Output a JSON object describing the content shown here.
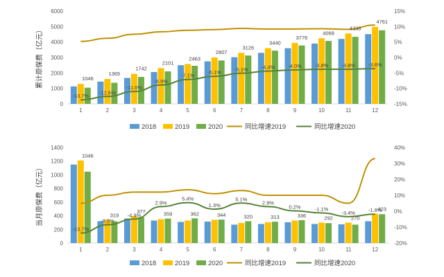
{
  "chart_data": [
    {
      "type": "bar",
      "ylabel": "累计原保费（亿元）",
      "categories": [
        "1",
        "2",
        "3",
        "4",
        "5",
        "6",
        "7",
        "8",
        "9",
        "10",
        "11",
        "12"
      ],
      "ylim": [
        0,
        6000
      ],
      "yticks": [
        "0",
        "1000",
        "2000",
        "3000",
        "4000",
        "5000",
        "6000"
      ],
      "y2lim": [
        -15,
        15
      ],
      "y2ticks": [
        "-15%",
        "-10%",
        "-5%",
        "0%",
        "5%",
        "10%",
        "15%"
      ],
      "series": [
        {
          "name": "2018",
          "kind": "bar",
          "color": "#5b9bd5",
          "values": [
            1130,
            1440,
            1680,
            2060,
            2500,
            2750,
            3020,
            3300,
            3600,
            3900,
            4200,
            4510
          ]
        },
        {
          "name": "2019",
          "kind": "bar",
          "color": "#ffc000",
          "values": [
            1290,
            1610,
            1940,
            2310,
            2580,
            3000,
            3300,
            3600,
            3940,
            4240,
            4550,
            4980
          ]
        },
        {
          "name": "2020",
          "kind": "bar",
          "color": "#70ad47",
          "values": [
            1046,
            1365,
            1742,
            2101,
            2463,
            2807,
            3126,
            3440,
            3776,
            4068,
            4338,
            4761
          ]
        },
        {
          "name": "同比增速2019",
          "kind": "line",
          "axis": "y2",
          "color": "#bf9000",
          "values": [
            5.2,
            6.2,
            7.5,
            8.3,
            8.8,
            9.0,
            9.4,
            9.2,
            9.2,
            9.3,
            9.1,
            10.5
          ]
        },
        {
          "name": "同比增速2020",
          "kind": "line",
          "axis": "y2",
          "color": "#548235",
          "values": [
            -13.7,
            -12.6,
            -11.0,
            -8.9,
            -7.1,
            -6.1,
            -5.1,
            -4.4,
            -4.0,
            -3.8,
            -3.8,
            -3.6
          ]
        }
      ],
      "labels_bar": [
        "1046",
        "1365",
        "1742",
        "2101",
        "2463",
        "2807",
        "3126",
        "3440",
        "3776",
        "4068",
        "4338",
        "4761"
      ],
      "labels_line": [
        "-13.7%",
        "-12.6%",
        "-11.0%",
        "-8.9%",
        "-7.1%",
        "-6.1%",
        "-5.1%",
        "-4.4%",
        "-4.0%",
        "-3.8%",
        "-3.8%",
        "-3.6%"
      ],
      "legend_position": "bottom",
      "grid": false
    },
    {
      "type": "bar",
      "ylabel": "当月原保费（亿元）",
      "categories": [
        "1",
        "2",
        "3",
        "4",
        "5",
        "6",
        "7",
        "8",
        "9",
        "10",
        "11",
        "12"
      ],
      "ylim": [
        0,
        1400
      ],
      "yticks": [
        "0",
        "200",
        "400",
        "600",
        "800",
        "1000",
        "1200",
        "1400"
      ],
      "y2lim": [
        -20,
        40
      ],
      "y2ticks": [
        "-20%",
        "-10%",
        "0%",
        "10%",
        "20%",
        "30%",
        "40%"
      ],
      "series": [
        {
          "name": "2018",
          "kind": "bar",
          "color": "#5b9bd5",
          "values": [
            1150,
            320,
            360,
            330,
            310,
            315,
            270,
            280,
            305,
            280,
            275,
            320
          ]
        },
        {
          "name": "2019",
          "kind": "bar",
          "color": "#ffc000",
          "values": [
            1210,
            340,
            395,
            350,
            330,
            340,
            295,
            305,
            330,
            300,
            300,
            430
          ]
        },
        {
          "name": "2020",
          "kind": "bar",
          "color": "#70ad47",
          "values": [
            1046,
            319,
            377,
            359,
            362,
            344,
            320,
            313,
            336,
            292,
            270,
            423
          ]
        },
        {
          "name": "同比增速2019",
          "kind": "line",
          "axis": "y2",
          "color": "#bf9000",
          "values": [
            5.0,
            10.0,
            12.0,
            12.0,
            13.5,
            11.0,
            13.0,
            10.0,
            10.0,
            10.0,
            5.0,
            33.0
          ]
        },
        {
          "name": "同比增速2020",
          "kind": "line",
          "axis": "y2",
          "color": "#548235",
          "values": [
            -13.7,
            -8.5,
            -4.9,
            2.9,
            5.4,
            1.3,
            5.1,
            2.9,
            0.2,
            -1.1,
            -3.4,
            -1.8
          ]
        }
      ],
      "labels_bar": [
        "1046",
        "319",
        "377",
        "359",
        "362",
        "344",
        "320",
        "313",
        "336",
        "292",
        "270",
        "423"
      ],
      "labels_line": [
        "-13.7%",
        "-8.5%",
        "-4.9%",
        "2.9%",
        "5.4%",
        "1.3%",
        "5.1%",
        "2.9%",
        "0.2%",
        "-1.1%",
        "-3.4%",
        "-1.8%"
      ],
      "legend_position": "bottom",
      "grid": false
    }
  ]
}
